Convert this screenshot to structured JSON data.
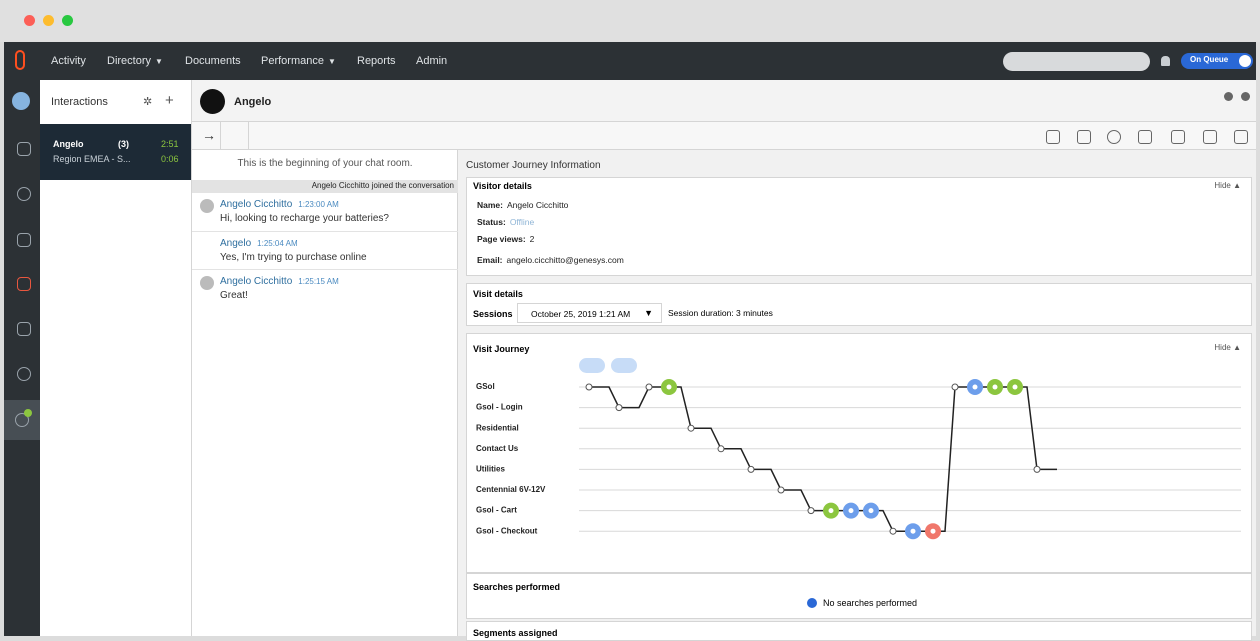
{
  "nav": {
    "items": [
      "Activity",
      "Directory",
      "Documents",
      "Performance",
      "Reports",
      "Admin"
    ],
    "status": "On Queue"
  },
  "interactions": {
    "title": "Interactions",
    "card": {
      "name": "Angelo",
      "count": "(3)",
      "time1": "2:51",
      "region": "Region EMEA - S...",
      "time2": "0:06"
    }
  },
  "conversation": {
    "name": "Angelo"
  },
  "chat": {
    "start": "This is the beginning of your chat room.",
    "joined": "Angelo Cicchitto joined the conversation",
    "messages": [
      {
        "author": "Angelo Cicchitto",
        "time": "1:23:00 AM",
        "text": "Hi, looking to recharge your batteries?"
      },
      {
        "author": "Angelo",
        "time": "1:25:04 AM",
        "text": "Yes, I'm trying to purchase online"
      },
      {
        "author": "Angelo Cicchitto",
        "time": "1:25:15 AM",
        "text": "Great!"
      }
    ]
  },
  "journey": {
    "title": "Customer Journey Information",
    "visitor": {
      "heading": "Visitor details",
      "hide": "Hide",
      "fields": [
        {
          "label": "Name:",
          "value": "Angelo Cicchitto"
        },
        {
          "label": "Status:",
          "value": "Offline"
        },
        {
          "label": "Page views:",
          "value": 2
        },
        {
          "label": "Email:",
          "value": "angelo.cicchitto@genesys.com"
        }
      ]
    },
    "visit": {
      "heading": "Visit details",
      "sessions_label": "Sessions",
      "session": "October 25, 2019 1:21 AM",
      "duration": "Session duration: 3 minutes"
    },
    "path": {
      "heading": "Visit Journey",
      "hide": "Hide",
      "pages": [
        "GSol",
        "Gsol - Login",
        "Residential",
        "Contact Us",
        "Utilities",
        "Centennial 6V-12V",
        "Gsol - Cart",
        "Gsol - Checkout"
      ],
      "steps": [
        {
          "page": 0,
          "markers": []
        },
        {
          "page": 1,
          "markers": []
        },
        {
          "page": 0,
          "markers": [
            "#8cc63f"
          ]
        },
        {
          "page": 2,
          "markers": []
        },
        {
          "page": 3,
          "markers": []
        },
        {
          "page": 4,
          "markers": []
        },
        {
          "page": 5,
          "markers": []
        },
        {
          "page": 6,
          "markers": [
            "#8cc63f",
            "#6d9eeb",
            "#6d9eeb"
          ]
        },
        {
          "page": 7,
          "markers": [
            "#6d9eeb",
            "#f0776b"
          ]
        },
        {
          "page": 0,
          "markers": [
            "#6d9eeb",
            "#8cc63f",
            "#8cc63f"
          ]
        },
        {
          "page": 4,
          "markers": []
        }
      ]
    },
    "searches": {
      "heading": "Searches performed",
      "empty": "No searches performed"
    },
    "segments": {
      "heading": "Segments assigned"
    }
  }
}
